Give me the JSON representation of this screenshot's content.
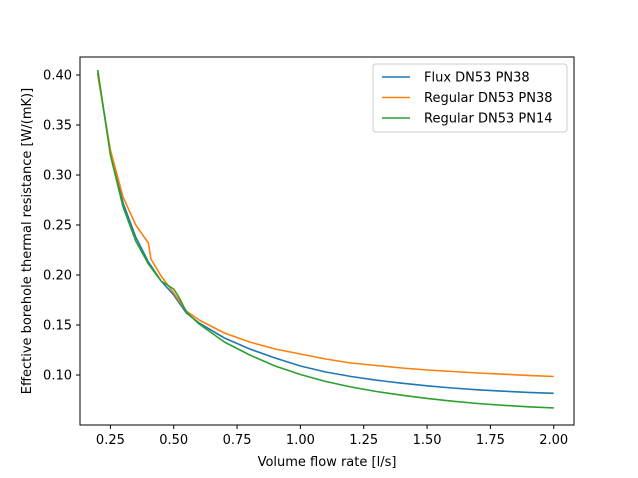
{
  "chart_data": {
    "type": "line",
    "xlabel": "Volume flow rate [l/s]",
    "ylabel": "Effective borehole thermal resistance [W/(mK)]",
    "xlim": [
      0.13,
      2.08
    ],
    "ylim": [
      0.05,
      0.418
    ],
    "xticks": [
      {
        "value": 0.25,
        "label": "0.25"
      },
      {
        "value": 0.5,
        "label": "0.50"
      },
      {
        "value": 0.75,
        "label": "0.75"
      },
      {
        "value": 1.0,
        "label": "1.00"
      },
      {
        "value": 1.25,
        "label": "1.25"
      },
      {
        "value": 1.5,
        "label": "1.50"
      },
      {
        "value": 1.75,
        "label": "1.75"
      },
      {
        "value": 2.0,
        "label": "2.00"
      }
    ],
    "yticks": [
      {
        "value": 0.1,
        "label": "0.10"
      },
      {
        "value": 0.15,
        "label": "0.15"
      },
      {
        "value": 0.2,
        "label": "0.20"
      },
      {
        "value": 0.25,
        "label": "0.25"
      },
      {
        "value": 0.3,
        "label": "0.30"
      },
      {
        "value": 0.35,
        "label": "0.35"
      },
      {
        "value": 0.4,
        "label": "0.40"
      }
    ],
    "grid": false,
    "legend_position": "top-right",
    "series": [
      {
        "name": "Flux DN53 PN38",
        "color": "#1f77b4",
        "points": [
          [
            0.2,
            0.402
          ],
          [
            0.25,
            0.323
          ],
          [
            0.3,
            0.272
          ],
          [
            0.35,
            0.238
          ],
          [
            0.4,
            0.213
          ],
          [
            0.45,
            0.194
          ],
          [
            0.5,
            0.18
          ],
          [
            0.55,
            0.162
          ],
          [
            0.6,
            0.152
          ],
          [
            0.7,
            0.137
          ],
          [
            0.8,
            0.126
          ],
          [
            0.9,
            0.117
          ],
          [
            1.0,
            0.109
          ],
          [
            1.1,
            0.103
          ],
          [
            1.2,
            0.0985
          ],
          [
            1.3,
            0.0948
          ],
          [
            1.4,
            0.0918
          ],
          [
            1.5,
            0.0892
          ],
          [
            1.6,
            0.087
          ],
          [
            1.7,
            0.0852
          ],
          [
            1.8,
            0.0838
          ],
          [
            1.9,
            0.0826
          ],
          [
            2.0,
            0.0817
          ]
        ]
      },
      {
        "name": "Regular DN53 PN38",
        "color": "#ff7f0e",
        "points": [
          [
            0.2,
            0.4
          ],
          [
            0.25,
            0.325
          ],
          [
            0.3,
            0.278
          ],
          [
            0.35,
            0.25
          ],
          [
            0.4,
            0.232
          ],
          [
            0.41,
            0.216
          ],
          [
            0.45,
            0.199
          ],
          [
            0.5,
            0.182
          ],
          [
            0.55,
            0.164
          ],
          [
            0.6,
            0.155
          ],
          [
            0.7,
            0.142
          ],
          [
            0.8,
            0.133
          ],
          [
            0.9,
            0.126
          ],
          [
            1.0,
            0.121
          ],
          [
            1.1,
            0.116
          ],
          [
            1.2,
            0.112
          ],
          [
            1.3,
            0.1095
          ],
          [
            1.4,
            0.107
          ],
          [
            1.5,
            0.105
          ],
          [
            1.6,
            0.1035
          ],
          [
            1.7,
            0.102
          ],
          [
            1.8,
            0.1008
          ],
          [
            1.9,
            0.0996
          ],
          [
            2.0,
            0.0985
          ]
        ]
      },
      {
        "name": "Regular DN53 PN14",
        "color": "#2ca02c",
        "points": [
          [
            0.2,
            0.405
          ],
          [
            0.25,
            0.32
          ],
          [
            0.3,
            0.268
          ],
          [
            0.35,
            0.234
          ],
          [
            0.4,
            0.211
          ],
          [
            0.45,
            0.194
          ],
          [
            0.5,
            0.186
          ],
          [
            0.52,
            0.178
          ],
          [
            0.55,
            0.163
          ],
          [
            0.6,
            0.151
          ],
          [
            0.7,
            0.133
          ],
          [
            0.8,
            0.12
          ],
          [
            0.9,
            0.109
          ],
          [
            1.0,
            0.1005
          ],
          [
            1.1,
            0.0935
          ],
          [
            1.2,
            0.088
          ],
          [
            1.3,
            0.0835
          ],
          [
            1.4,
            0.0798
          ],
          [
            1.5,
            0.0766
          ],
          [
            1.6,
            0.0738
          ],
          [
            1.7,
            0.0715
          ],
          [
            1.8,
            0.0697
          ],
          [
            1.9,
            0.0682
          ],
          [
            2.0,
            0.0671
          ]
        ]
      }
    ]
  }
}
